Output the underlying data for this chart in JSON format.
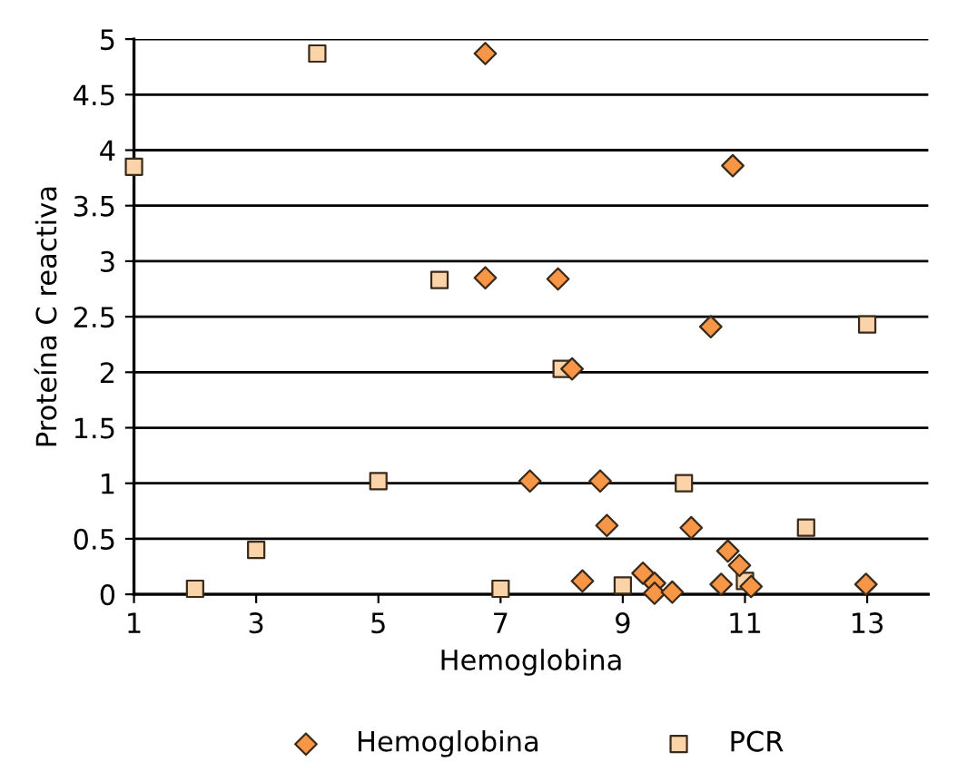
{
  "chart_data": {
    "type": "scatter",
    "xlabel": "Hemoglobina",
    "ylabel": "Proteína C reactiva",
    "xlim": [
      1,
      14
    ],
    "xticks": [
      1,
      3,
      5,
      7,
      9,
      11,
      13
    ],
    "ylim": [
      0,
      5
    ],
    "yticks": [
      0,
      0.5,
      1,
      1.5,
      2,
      2.5,
      3,
      3.5,
      4,
      4.5,
      5
    ],
    "grid": "y",
    "legend": "bottom",
    "series": [
      {
        "name": "Hemoglobina",
        "color": "#f79646",
        "marker": "diamond",
        "x": [
          6.75,
          6.75,
          7.94,
          10.8,
          10.44,
          8.17,
          7.48,
          8.63,
          8.74,
          10.12,
          10.72,
          10.91,
          8.34,
          9.33,
          9.52,
          9.52,
          9.81,
          10.61,
          11.1,
          12.98
        ],
        "values": [
          4.87,
          2.85,
          2.84,
          3.86,
          2.41,
          2.03,
          1.02,
          1.02,
          0.62,
          0.6,
          0.39,
          0.26,
          0.12,
          0.19,
          0.1,
          0.01,
          0.02,
          0.09,
          0.07,
          0.09
        ]
      },
      {
        "name": "PCR",
        "color": "#fbd3a8",
        "marker": "square",
        "x": [
          1,
          2,
          3,
          4,
          5,
          6,
          7,
          8,
          9,
          10,
          11,
          12,
          13
        ],
        "values": [
          3.85,
          0.05,
          0.4,
          4.87,
          1.02,
          2.83,
          0.05,
          2.03,
          0.08,
          1.0,
          0.12,
          0.6,
          2.43
        ]
      }
    ]
  }
}
